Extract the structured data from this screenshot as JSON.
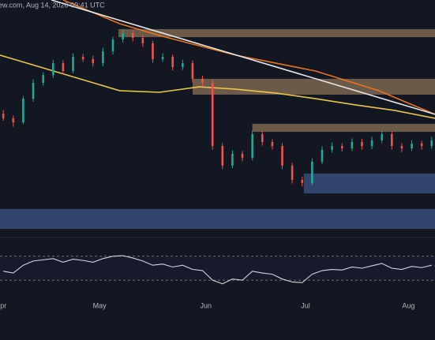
{
  "chart_data": [
    {
      "type": "candlestick",
      "title": "ew.com, Aug 14, 2026 09:41 UTC",
      "xlim": [
        0,
        131
      ],
      "ylim": [
        0,
        100
      ],
      "up_color": "#26a69a",
      "down_color": "#ef5350",
      "x": [
        1,
        4,
        7,
        10,
        13,
        16,
        19,
        22,
        25,
        28,
        31,
        34,
        37,
        40,
        43,
        46,
        49,
        52,
        55,
        58,
        61,
        64,
        67,
        70,
        73,
        76,
        79,
        82,
        85,
        88,
        91,
        94,
        97,
        100,
        103,
        106,
        109,
        112,
        115,
        118,
        121,
        124,
        127,
        130
      ],
      "open": [
        52,
        50,
        48.3,
        58.3,
        65,
        68.3,
        73.3,
        70,
        76,
        75,
        73.3,
        78.3,
        83.3,
        86,
        84,
        81.7,
        75,
        76,
        71.7,
        73.3,
        66.7,
        65,
        38.3,
        30,
        35,
        33.3,
        43.3,
        40,
        38.3,
        30,
        24,
        22.7,
        31.7,
        36.7,
        38.3,
        37.3,
        40,
        38.3,
        40.7,
        43.3,
        38.3,
        37.3,
        39.3,
        38.3
      ],
      "high": [
        53.5,
        51.2,
        59.5,
        66.5,
        69.5,
        74.8,
        74.5,
        77.5,
        77.2,
        76.5,
        79.8,
        84.5,
        87.5,
        87.2,
        85.3,
        82.8,
        77.5,
        77,
        74.8,
        74.5,
        68,
        66.2,
        39.5,
        36.5,
        36.2,
        44.8,
        44.5,
        41.2,
        39.5,
        31.2,
        25.3,
        33.2,
        38.2,
        39.8,
        39.5,
        41.5,
        41.2,
        42.2,
        44.8,
        44.5,
        39.5,
        40.8,
        40.5,
        42.2
      ],
      "low": [
        49,
        46.5,
        47.5,
        57,
        63.8,
        67,
        68.5,
        69,
        73.8,
        71.8,
        72,
        77,
        82,
        82.5,
        80.2,
        73.5,
        73.8,
        70.2,
        70.5,
        65.2,
        63.5,
        36.8,
        28.5,
        29,
        31.8,
        32.2,
        38.5,
        36.8,
        28.5,
        22.5,
        21.2,
        21.8,
        30.5,
        35.5,
        36,
        36.2,
        36.8,
        37,
        39.5,
        36.8,
        35.8,
        36.2,
        36.8,
        37.2
      ],
      "close": [
        50,
        48.3,
        58.3,
        65,
        68.3,
        73.3,
        70,
        76,
        75,
        73.3,
        78.3,
        83.3,
        86,
        84,
        81.7,
        75,
        76,
        71.7,
        73.3,
        66.7,
        65,
        38.3,
        30,
        35,
        33.3,
        43.3,
        40,
        38.3,
        30,
        24,
        22.7,
        31.7,
        36.7,
        38.3,
        37.3,
        40,
        38.3,
        40.7,
        43.3,
        38.3,
        37.3,
        39.3,
        38.3,
        40.7
      ],
      "lines": [
        {
          "color": "#e8c547",
          "x": [
            0,
            12,
            24,
            36,
            48,
            60,
            71,
            83,
            95,
            107,
            119,
            131
          ],
          "values": [
            76.7,
            71.7,
            66.7,
            61.7,
            61,
            63.3,
            62.3,
            60.7,
            58.3,
            55.7,
            53.3,
            50
          ]
        },
        {
          "color": "#e8731c",
          "x": [
            19,
            36,
            48,
            71,
            95,
            114,
            131
          ],
          "values": [
            100,
            90,
            85,
            76.7,
            70,
            61.7,
            51.7
          ]
        },
        {
          "color": "#e6e6e6",
          "x": [
            15.5,
            131
          ],
          "values": [
            100,
            51.7
          ]
        }
      ],
      "zones": [
        {
          "color": "#8a7258",
          "xlim": [
            35.7,
            131
          ],
          "ylim": [
            84.3,
            87.7
          ]
        },
        {
          "color": "#8a7258",
          "xlim": [
            58,
            131
          ],
          "ylim": [
            60,
            66.7
          ]
        },
        {
          "color": "#8a7258",
          "xlim": [
            76,
            131
          ],
          "ylim": [
            44.3,
            47.7
          ]
        },
        {
          "color": "#3d5686",
          "xlim": [
            91.5,
            131
          ],
          "ylim": [
            18.3,
            26.7
          ]
        },
        {
          "color": "#3d5686",
          "xlim": [
            0,
            131
          ],
          "ylim": [
            3.3,
            11.7
          ]
        }
      ]
    },
    {
      "type": "line",
      "xlim": [
        0,
        131
      ],
      "ylim": [
        0,
        100
      ],
      "color": "#d1d4dc",
      "levels": [
        70,
        30
      ],
      "x": [
        1,
        4,
        7,
        10,
        13,
        16,
        19,
        22,
        25,
        28,
        31,
        34,
        37,
        40,
        43,
        46,
        49,
        52,
        55,
        58,
        61,
        64,
        67,
        70,
        73,
        76,
        79,
        82,
        85,
        88,
        91,
        94,
        97,
        100,
        103,
        106,
        109,
        112,
        115,
        118,
        121,
        124,
        127,
        130
      ],
      "values": [
        45,
        42,
        55,
        62,
        64,
        66,
        60,
        65,
        63,
        60,
        66,
        70,
        71,
        67,
        62,
        55,
        57,
        52,
        55,
        48,
        46,
        30,
        24,
        32,
        30,
        45,
        42,
        40,
        32,
        27,
        26,
        40,
        46,
        48,
        47,
        52,
        50,
        54,
        58,
        50,
        48,
        53,
        51,
        55
      ],
      "xticks": [
        {
          "value": 1,
          "label": "pr"
        },
        {
          "value": 30,
          "label": "May"
        },
        {
          "value": 62,
          "label": "Jun"
        },
        {
          "value": 92,
          "label": "Jul"
        },
        {
          "value": 123,
          "label": "Aug"
        }
      ]
    }
  ]
}
